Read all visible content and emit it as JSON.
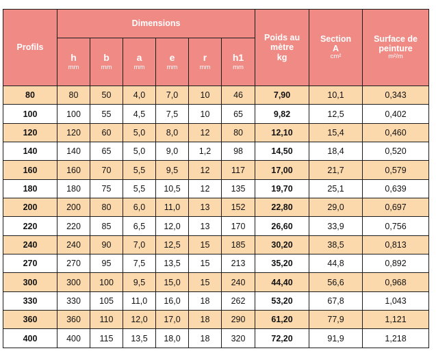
{
  "header": {
    "profils": "Profils",
    "dimensions": "Dimensions",
    "dims": [
      {
        "sym": "h",
        "unit": "mm"
      },
      {
        "sym": "b",
        "unit": "mm"
      },
      {
        "sym": "a",
        "unit": "mm"
      },
      {
        "sym": "e",
        "unit": "mm"
      },
      {
        "sym": "r",
        "unit": "mm"
      },
      {
        "sym": "h1",
        "unit": "mm"
      }
    ],
    "poids": [
      "Poids au",
      "mètre",
      "kg"
    ],
    "section": [
      "Section",
      "A",
      "cm²"
    ],
    "surface": [
      "Surface de",
      "peinture",
      "m²/m"
    ]
  },
  "colors": {
    "header_bg": "#f08a84",
    "odd_row_bg": "#fcd9ad",
    "even_row_bg": "#ffffff",
    "border": "#1a1a1a"
  },
  "rows": [
    [
      "80",
      "80",
      "50",
      "4,0",
      "7,0",
      "10",
      "46",
      "7,90",
      "10,1",
      "0,343"
    ],
    [
      "100",
      "100",
      "55",
      "4,5",
      "7,5",
      "10",
      "65",
      "9,82",
      "12,5",
      "0,402"
    ],
    [
      "120",
      "120",
      "60",
      "5,0",
      "8,0",
      "12",
      "80",
      "12,10",
      "15,4",
      "0,460"
    ],
    [
      "140",
      "140",
      "65",
      "5,0",
      "9,0",
      "1,2",
      "98",
      "14,50",
      "18,4",
      "0,520"
    ],
    [
      "160",
      "160",
      "70",
      "5,5",
      "9,5",
      "12",
      "117",
      "17,00",
      "21,7",
      "0,579"
    ],
    [
      "180",
      "180",
      "75",
      "5,5",
      "10,5",
      "12",
      "135",
      "19,70",
      "25,1",
      "0,639"
    ],
    [
      "200",
      "200",
      "80",
      "6,0",
      "11,0",
      "13",
      "152",
      "22,80",
      "29,0",
      "0,697"
    ],
    [
      "220",
      "220",
      "85",
      "6,5",
      "12,0",
      "13",
      "170",
      "26,60",
      "33,9",
      "0,756"
    ],
    [
      "240",
      "240",
      "90",
      "7,0",
      "12,5",
      "15",
      "185",
      "30,20",
      "38,5",
      "0,813"
    ],
    [
      "270",
      "270",
      "95",
      "7,5",
      "13,5",
      "15",
      "213",
      "35,20",
      "44,8",
      "0,892"
    ],
    [
      "300",
      "300",
      "100",
      "9,5",
      "15,0",
      "15",
      "240",
      "44,40",
      "56,6",
      "0,968"
    ],
    [
      "330",
      "330",
      "105",
      "11,0",
      "16,0",
      "18",
      "262",
      "53,20",
      "67,8",
      "1,043"
    ],
    [
      "360",
      "360",
      "110",
      "12,0",
      "17,0",
      "18",
      "290",
      "61,20",
      "77,9",
      "1,121"
    ],
    [
      "400",
      "400",
      "115",
      "13,5",
      "18,0",
      "18",
      "320",
      "72,20",
      "91,9",
      "1,218"
    ]
  ]
}
